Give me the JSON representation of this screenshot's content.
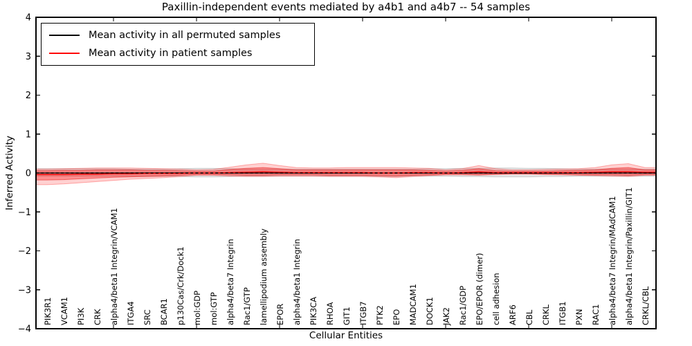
{
  "title": "Paxillin-independent events mediated by a4b1 and a4b7 -- 54 samples",
  "axes": {
    "xlabel": "Cellular Entities",
    "ylabel": "Inferred Activity"
  },
  "legend": {
    "position": "upper left",
    "items": [
      {
        "label": "Mean activity in all permuted samples",
        "color": "#000000"
      },
      {
        "label": "Mean activity in patient samples",
        "color": "#ff0000"
      }
    ]
  },
  "colors": {
    "permuted_line": "#000000",
    "patient_line": "#ff0000",
    "permuted_band_fill": "rgba(0,0,0,0.10)",
    "permuted_band_edge": "rgba(0,0,0,0.16)",
    "patient_band_outer_fill": "rgba(255,0,0,0.18)",
    "patient_band_outer_edge": "rgba(255,0,0,0.30)",
    "patient_band_inner_fill": "rgba(255,0,0,0.32)",
    "patient_band_inner_edge": "rgba(220,0,0,0.45)",
    "axis": "#000000",
    "background": "#ffffff"
  },
  "chart_data": {
    "type": "line",
    "title": "Paxillin-independent events mediated by a4b1 and a4b7 -- 54 samples",
    "xlabel": "Cellular Entities",
    "ylabel": "Inferred Activity",
    "ylim": [
      -4,
      4
    ],
    "yticks": [
      4,
      3,
      2,
      1,
      0,
      -1,
      -2,
      -3,
      -4
    ],
    "x_major_tick_positions": [
      5,
      10,
      15,
      20,
      25,
      30,
      35
    ],
    "grid": false,
    "legend_position": "upper left",
    "categories": [
      "PIK3R1",
      "VCAM1",
      "PI3K",
      "CRK",
      "alpha4/beta1 Integrin/VCAM1",
      "ITGA4",
      "SRC",
      "BCAR1",
      "p130Cas/Crk/Dock1",
      "mol:GDP",
      "mol:GTP",
      "alpha4/beta7 Integrin",
      "Rac1/GTP",
      "lamellipodium assembly",
      "EPOR",
      "alpha4/beta1 Integrin",
      "PIK3CA",
      "RHOA",
      "GIT1",
      "ITGB7",
      "PTK2",
      "EPO",
      "MADCAM1",
      "DOCK1",
      "JAK2",
      "Rac1/GDP",
      "EPO/EPOR (dimer)",
      "cell adhesion",
      "ARF6",
      "CBL",
      "CRKL",
      "ITGB1",
      "PXN",
      "RAC1",
      "alpha4/beta7 Integrin/MAdCAM1",
      "alpha4/beta1 Integrin/Paxillin/GIT1",
      "CRKL/CBL"
    ],
    "series": [
      {
        "name": "Mean activity in all permuted samples",
        "color": "#000000",
        "values": [
          0,
          0,
          0,
          0,
          0,
          0,
          0,
          0,
          0,
          0,
          0,
          0,
          0,
          0,
          0,
          0,
          0,
          0,
          0,
          0,
          0,
          0,
          0,
          0,
          0,
          0,
          0,
          0,
          0,
          0,
          0,
          0,
          0,
          0,
          0,
          0,
          0
        ]
      },
      {
        "name": "Mean activity in patient samples",
        "color": "#ff0000",
        "values": [
          -0.04,
          -0.04,
          -0.03,
          -0.03,
          -0.02,
          -0.02,
          -0.01,
          -0.01,
          -0.01,
          0,
          0,
          0.01,
          0.02,
          0.03,
          0.02,
          0.01,
          0.01,
          0.01,
          0.01,
          0.01,
          0,
          0,
          0.01,
          0.01,
          0,
          0.01,
          0.03,
          0.01,
          0.01,
          0.01,
          0.01,
          0.01,
          0.01,
          0.02,
          0.03,
          0.03,
          0.02
        ]
      }
    ],
    "bands": [
      {
        "name": "permuted-samples-band",
        "fill": "rgba(0,0,0,0.10)",
        "edge": "rgba(0,0,0,0.16)",
        "upper": [
          0.11,
          0.11,
          0.11,
          0.11,
          0.11,
          0.1,
          0.1,
          0.1,
          0.11,
          0.12,
          0.12,
          0.11,
          0.1,
          0.1,
          0.1,
          0.1,
          0.1,
          0.1,
          0.1,
          0.1,
          0.1,
          0.1,
          0.1,
          0.11,
          0.11,
          0.12,
          0.12,
          0.13,
          0.13,
          0.12,
          0.12,
          0.11,
          0.1,
          0.1,
          0.1,
          0.1,
          0.1
        ],
        "lower": [
          -0.08,
          -0.08,
          -0.08,
          -0.08,
          -0.08,
          -0.08,
          -0.08,
          -0.08,
          -0.09,
          -0.1,
          -0.1,
          -0.09,
          -0.08,
          -0.08,
          -0.08,
          -0.08,
          -0.08,
          -0.08,
          -0.08,
          -0.08,
          -0.09,
          -0.09,
          -0.08,
          -0.08,
          -0.08,
          -0.09,
          -0.09,
          -0.1,
          -0.1,
          -0.1,
          -0.09,
          -0.09,
          -0.08,
          -0.08,
          -0.08,
          -0.08,
          -0.08
        ]
      },
      {
        "name": "patient-samples-band-outer",
        "fill": "rgba(255,0,0,0.18)",
        "edge": "rgba(255,0,0,0.30)",
        "upper": [
          0.1,
          0.11,
          0.12,
          0.13,
          0.13,
          0.13,
          0.12,
          0.11,
          0.1,
          0.08,
          0.09,
          0.15,
          0.21,
          0.25,
          0.19,
          0.14,
          0.13,
          0.13,
          0.14,
          0.14,
          0.14,
          0.14,
          0.13,
          0.12,
          0.08,
          0.11,
          0.19,
          0.11,
          0.08,
          0.08,
          0.09,
          0.1,
          0.11,
          0.14,
          0.21,
          0.24,
          0.14
        ],
        "lower": [
          -0.3,
          -0.28,
          -0.25,
          -0.22,
          -0.19,
          -0.16,
          -0.14,
          -0.12,
          -0.09,
          -0.06,
          -0.06,
          -0.08,
          -0.09,
          -0.09,
          -0.08,
          -0.08,
          -0.08,
          -0.09,
          -0.09,
          -0.09,
          -0.1,
          -0.12,
          -0.09,
          -0.07,
          -0.05,
          -0.05,
          -0.06,
          -0.04,
          -0.03,
          -0.03,
          -0.04,
          -0.05,
          -0.06,
          -0.07,
          -0.08,
          -0.09,
          -0.06
        ]
      },
      {
        "name": "patient-samples-band-inner",
        "fill": "rgba(255,0,0,0.32)",
        "edge": "rgba(220,0,0,0.45)",
        "upper": [
          0.06,
          0.07,
          0.07,
          0.08,
          0.08,
          0.08,
          0.07,
          0.07,
          0.06,
          0.05,
          0.05,
          0.09,
          0.12,
          0.14,
          0.11,
          0.08,
          0.08,
          0.08,
          0.08,
          0.08,
          0.08,
          0.08,
          0.08,
          0.07,
          0.05,
          0.07,
          0.11,
          0.06,
          0.05,
          0.05,
          0.05,
          0.06,
          0.07,
          0.08,
          0.12,
          0.14,
          0.08
        ],
        "lower": [
          -0.18,
          -0.17,
          -0.15,
          -0.13,
          -0.11,
          -0.1,
          -0.09,
          -0.08,
          -0.06,
          -0.04,
          -0.04,
          -0.05,
          -0.06,
          -0.06,
          -0.05,
          -0.05,
          -0.05,
          -0.06,
          -0.06,
          -0.06,
          -0.07,
          -0.08,
          -0.06,
          -0.05,
          -0.03,
          -0.03,
          -0.04,
          -0.03,
          -0.02,
          -0.02,
          -0.03,
          -0.03,
          -0.04,
          -0.05,
          -0.05,
          -0.06,
          -0.04
        ]
      }
    ],
    "zero_line": {
      "style": "dashed",
      "color": "#000000",
      "y": 0
    }
  }
}
